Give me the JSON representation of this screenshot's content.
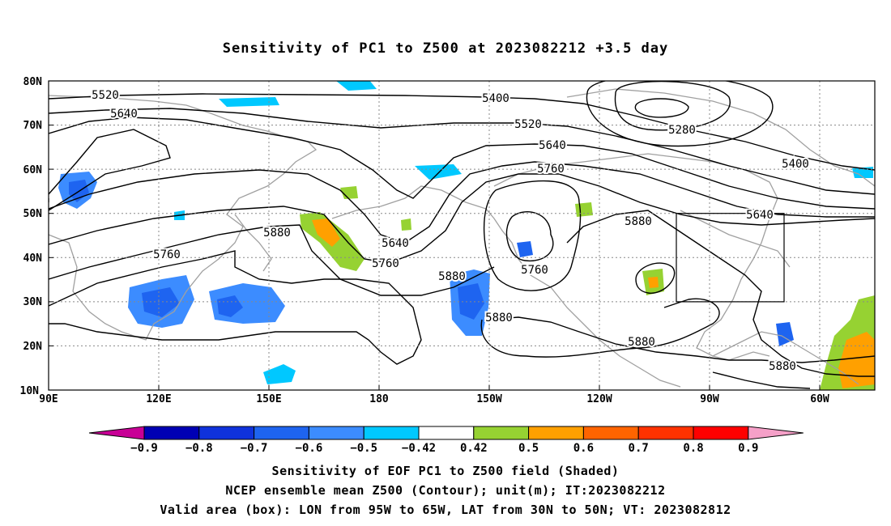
{
  "title": "Sensitivity of PC1 to Z500 at 2023082212 +3.5 day",
  "lat_labels": [
    "80N",
    "70N",
    "60N",
    "50N",
    "40N",
    "30N",
    "20N",
    "10N"
  ],
  "lon_labels": [
    "90E",
    "120E",
    "150E",
    "180",
    "150W",
    "120W",
    "90W",
    "60W"
  ],
  "contour_labels": [
    {
      "text": "5520",
      "pos": "upper-left"
    },
    {
      "text": "5640",
      "pos": "upper-left"
    },
    {
      "text": "5400",
      "pos": "north-central"
    },
    {
      "text": "5520",
      "pos": "north-central"
    },
    {
      "text": "5640",
      "pos": "north-central"
    },
    {
      "text": "5760",
      "pos": "north-central"
    },
    {
      "text": "5280",
      "pos": "arctic-low"
    },
    {
      "text": "5400",
      "pos": "north-east"
    },
    {
      "text": "5640",
      "pos": "east"
    },
    {
      "text": "5880",
      "pos": "central-east"
    },
    {
      "text": "5880",
      "pos": "west-pacific"
    },
    {
      "text": "5760",
      "pos": "west-asia"
    },
    {
      "text": "5640",
      "pos": "dateline"
    },
    {
      "text": "5760",
      "pos": "dateline"
    },
    {
      "text": "5880",
      "pos": "subtropical"
    },
    {
      "text": "5760",
      "pos": "cutoff-low"
    },
    {
      "text": "5880",
      "pos": "subtropical-high"
    },
    {
      "text": "5880",
      "pos": "gulf"
    },
    {
      "text": "5880",
      "pos": "caribbean"
    }
  ],
  "colorbar": {
    "labels": [
      "-0.9",
      "-0.8",
      "-0.7",
      "-0.6",
      "-0.5",
      "-0.42",
      "0.42",
      "0.5",
      "0.6",
      "0.7",
      "0.8",
      "0.9"
    ],
    "colors": [
      "#0000b4",
      "#0f32dc",
      "#1e64f0",
      "#3c8cff",
      "#00c8ff",
      "#ffffff",
      "#96d232",
      "#ffa000",
      "#ff6400",
      "#ff3200",
      "#ff0000"
    ],
    "low_end_color": "#c80096",
    "high_end_color": "#f5a0c8"
  },
  "captions": [
    "Sensitivity of EOF PC1 to Z500 field (Shaded)",
    "NCEP ensemble mean Z500 (Contour); unit(m); IT:2023082212",
    "Valid area (box): LON from 95W to 65W, LAT from 30N to 50N; VT: 2023082812"
  ],
  "valid_box": {
    "lon_min": -95,
    "lon_max": -65,
    "lat_min": 30,
    "lat_max": 50
  },
  "colors": {
    "contour": "#000000",
    "coast": "#a0a0a0",
    "grid": "#888888"
  }
}
